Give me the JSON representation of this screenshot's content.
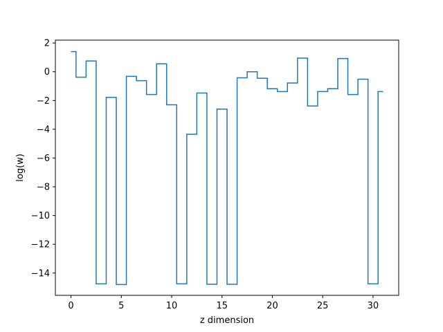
{
  "chart_data": {
    "type": "line",
    "drawstyle": "steps-mid",
    "xlabel": "z dimension",
    "ylabel": "log(w)",
    "xlim": [
      -1.55,
      32.55
    ],
    "ylim": [
      -15.55,
      2.2
    ],
    "xticks": [
      0,
      5,
      10,
      15,
      20,
      25,
      30
    ],
    "yticks": [
      2,
      0,
      -2,
      -4,
      -6,
      -8,
      -10,
      -12,
      -14
    ],
    "grid": false,
    "color": "#1f77b4",
    "series": [
      {
        "x": [
          0,
          1,
          2,
          3,
          4,
          5,
          6,
          7,
          8,
          9,
          10,
          11,
          12,
          13,
          14,
          15,
          16,
          17,
          18,
          19,
          20,
          21,
          22,
          23,
          24,
          25,
          26,
          27,
          28,
          29,
          30,
          31
        ],
        "values": [
          1.4,
          -0.38,
          0.75,
          -14.75,
          -1.78,
          -14.8,
          -0.32,
          -0.62,
          -1.58,
          0.55,
          -2.3,
          -14.75,
          -4.35,
          -1.48,
          -14.78,
          -2.6,
          -14.78,
          -0.42,
          0.0,
          -0.45,
          -1.18,
          -1.38,
          -0.78,
          0.95,
          -2.38,
          -1.38,
          -1.18,
          0.92,
          -1.58,
          -0.52,
          -14.75,
          -1.38
        ]
      }
    ]
  }
}
